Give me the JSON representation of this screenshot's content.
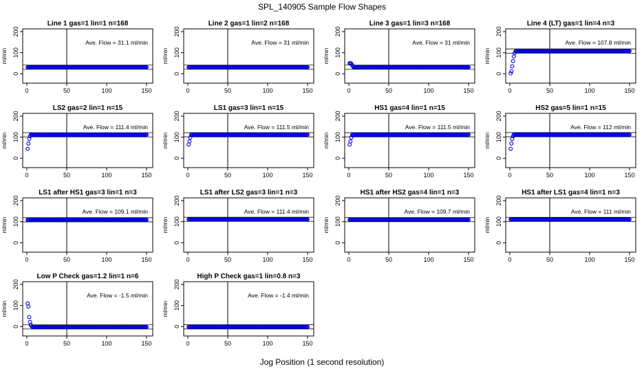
{
  "chart_data": {
    "type": "scatter",
    "title": "SPL_140905  Sample Flow Shapes",
    "xlabel": "Jog Position (1 second resolution)",
    "ylabel": "ml/min",
    "xlim": [
      0,
      150
    ],
    "ylim": [
      -25,
      200
    ],
    "xticks": [
      "0",
      "50",
      "100",
      "150"
    ],
    "yticks": [
      "0",
      "100",
      "200"
    ],
    "vline_x": 50,
    "marker_color": "#0000dd",
    "panels": [
      {
        "title": "Line 1 gas=1 lin=1 n=168",
        "annotation": "Ave. Flow =  31.1  ml/min",
        "mean": 31.1,
        "plateau": 31,
        "startup": []
      },
      {
        "title": "Line 2 gas=1 lin=2 n=168",
        "annotation": "Ave. Flow =  31  ml/min",
        "mean": 31,
        "plateau": 31,
        "startup": []
      },
      {
        "title": "Line 3 gas=1 lin=3 n=168",
        "annotation": "Ave. Flow =  31  ml/min",
        "mean": 31,
        "plateau": 31,
        "startup": [
          [
            1,
            50
          ],
          [
            2,
            50
          ],
          [
            3,
            48
          ],
          [
            4,
            42
          ],
          [
            5,
            36
          ]
        ]
      },
      {
        "title": "Line 4 (LT) gas=1 lin=4 n=3",
        "annotation": "Ave. Flow =  107.8  ml/min",
        "mean": 107.8,
        "plateau": 108,
        "startup": [
          [
            1,
            2
          ],
          [
            2,
            12
          ],
          [
            3,
            35
          ],
          [
            4,
            60
          ],
          [
            5,
            82
          ],
          [
            6,
            98
          ],
          [
            7,
            106
          ]
        ]
      },
      {
        "title": "LS2 gas=2 lin=1 n=15",
        "annotation": "Ave. Flow =  111.4  ml/min",
        "mean": 111.4,
        "plateau": 112,
        "startup": [
          [
            1,
            45
          ],
          [
            2,
            70
          ],
          [
            3,
            92
          ],
          [
            4,
            105
          ],
          [
            5,
            112
          ],
          [
            6,
            114
          ]
        ]
      },
      {
        "title": "LS1 gas=3 lin=1 n=15",
        "annotation": "Ave. Flow =  111.5  ml/min",
        "mean": 111.5,
        "plateau": 112,
        "startup": [
          [
            1,
            65
          ],
          [
            2,
            80
          ],
          [
            3,
            98
          ],
          [
            4,
            110
          ]
        ]
      },
      {
        "title": "HS1 gas=4 lin=1 n=15",
        "annotation": "Ave. Flow =  111.5  ml/min",
        "mean": 111.5,
        "plateau": 112,
        "startup": [
          [
            1,
            65
          ],
          [
            2,
            80
          ],
          [
            3,
            98
          ],
          [
            4,
            110
          ]
        ]
      },
      {
        "title": "HS2 gas=5 lin=1 n=15",
        "annotation": "Ave. Flow =  112  ml/min",
        "mean": 112,
        "plateau": 112,
        "startup": [
          [
            1,
            45
          ],
          [
            2,
            70
          ],
          [
            3,
            92
          ],
          [
            4,
            105
          ],
          [
            5,
            112
          ],
          [
            6,
            114
          ]
        ]
      },
      {
        "title": "LS1 after HS1 gas=3 lin=1 n=3",
        "annotation": "Ave. Flow =  109.1  ml/min",
        "mean": 109.1,
        "plateau": 109,
        "startup": []
      },
      {
        "title": "LS1 after LS2 gas=3 lin=1 n=3",
        "annotation": "Ave. Flow =  111.4  ml/min",
        "mean": 111.4,
        "plateau": 111,
        "startup": []
      },
      {
        "title": "HS1 after HS2 gas=4 lin=1 n=3",
        "annotation": "Ave. Flow =  109.7  ml/min",
        "mean": 109.7,
        "plateau": 110,
        "startup": []
      },
      {
        "title": "HS1 after LS1 gas=4 lin=1 n=3",
        "annotation": "Ave. Flow =  111  ml/min",
        "mean": 111,
        "plateau": 111,
        "startup": []
      },
      {
        "title": "Low P Check gas=1.2 lin=1 n=6",
        "annotation": "Ave. Flow =  -1.5  ml/min",
        "mean": -1.5,
        "plateau": -2,
        "startup": [
          [
            1,
            110
          ],
          [
            2,
            95
          ],
          [
            3,
            45
          ],
          [
            4,
            22
          ],
          [
            5,
            8
          ],
          [
            6,
            2
          ]
        ]
      },
      {
        "title": "High P Check gas=1 lin=0.8 n=3",
        "annotation": "Ave. Flow =  -1.4  ml/min",
        "mean": -1.4,
        "plateau": -1.4,
        "startup": []
      }
    ]
  }
}
